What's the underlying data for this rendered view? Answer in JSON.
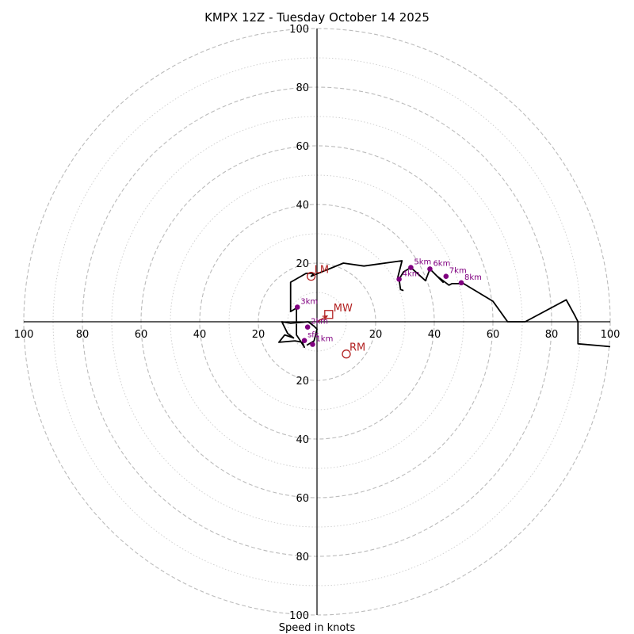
{
  "chart_data": {
    "type": "hodograph",
    "title": "KMPX 12Z - Tuesday October 14 2025",
    "xlabel": "Speed in knots",
    "units": "knots",
    "max_speed": 100,
    "ring_step_major": 20,
    "ring_step_minor": 10,
    "axis_ticks_x": [
      "100",
      "80",
      "60",
      "40",
      "20",
      "20",
      "40",
      "60",
      "80",
      "100"
    ],
    "axis_ticks_x_values": [
      -100,
      -80,
      -60,
      -40,
      -20,
      20,
      40,
      60,
      80,
      100
    ],
    "axis_ticks_y": [
      "100",
      "80",
      "60",
      "40",
      "20",
      "20",
      "40",
      "60",
      "80",
      "100"
    ],
    "axis_ticks_y_values": [
      100,
      80,
      60,
      40,
      20,
      -20,
      -40,
      -60,
      -80,
      -100
    ],
    "colors": {
      "trace": "#000000",
      "height_markers": "#800080",
      "storm_motion": "#b22222",
      "ring_major": "#bbbbbb",
      "ring_minor": "#cccccc"
    },
    "trace": [
      [
        -3.5,
        -8
      ],
      [
        -1,
        -6.5
      ],
      [
        0,
        -2.5
      ],
      [
        -1,
        -1.5
      ],
      [
        -3,
        0
      ],
      [
        -9,
        -0.5
      ],
      [
        -12,
        0
      ],
      [
        -10,
        -4
      ],
      [
        -8,
        -5.5
      ],
      [
        -11,
        -4.5
      ],
      [
        -13,
        -7
      ],
      [
        -7.5,
        -6.5
      ],
      [
        -5,
        -7
      ],
      [
        -4.3,
        -8.7
      ],
      [
        -6,
        -6
      ],
      [
        -7,
        -4.5
      ],
      [
        -7,
        4.7
      ],
      [
        -9,
        3.5
      ],
      [
        -9,
        6
      ],
      [
        -9,
        13.5
      ],
      [
        -3.7,
        16.5
      ],
      [
        -1,
        16.5
      ],
      [
        -2,
        15.5
      ],
      [
        9,
        20
      ],
      [
        16,
        19
      ],
      [
        16,
        19
      ],
      [
        29,
        20.8
      ],
      [
        27.5,
        15
      ],
      [
        28,
        14.5
      ],
      [
        28.5,
        11
      ],
      [
        29.3,
        10.7
      ],
      [
        28.5,
        11
      ],
      [
        28,
        14.5
      ],
      [
        29.5,
        17
      ],
      [
        32,
        18.5
      ],
      [
        37,
        14
      ],
      [
        38.5,
        18
      ],
      [
        43,
        13.5
      ],
      [
        41,
        15.5
      ],
      [
        45,
        12.5
      ],
      [
        46,
        13
      ],
      [
        50,
        13
      ],
      [
        55,
        10
      ],
      [
        60,
        7
      ],
      [
        65,
        0
      ],
      [
        71,
        0
      ],
      [
        85,
        7.5
      ],
      [
        88,
        2
      ],
      [
        89,
        0
      ],
      [
        89,
        -7.5
      ],
      [
        100,
        -8.5
      ]
    ],
    "height_markers": [
      {
        "label": "1km",
        "u": -1.5,
        "v": -7.7
      },
      {
        "label": "2km",
        "u": -3.2,
        "v": -1.8
      },
      {
        "label": "sfc",
        "u": -4.3,
        "v": -6.4
      },
      {
        "label": "3km",
        "u": -6.7,
        "v": 5.0
      },
      {
        "label": "4km",
        "u": 28.0,
        "v": 14.5
      },
      {
        "label": "5km",
        "u": 32.0,
        "v": 18.5
      },
      {
        "label": "6km",
        "u": 38.5,
        "v": 18.0
      },
      {
        "label": "7km",
        "u": 44.0,
        "v": 15.5
      },
      {
        "label": "8km",
        "u": 49.2,
        "v": 13.3
      }
    ],
    "storm_motion": [
      {
        "label": "LM",
        "u": -2,
        "v": 15.5,
        "marker": "circle"
      },
      {
        "label": "RM",
        "u": 10,
        "v": -11,
        "marker": "circle"
      },
      {
        "label": "MW",
        "u": 4,
        "v": 2.5,
        "marker": "square"
      }
    ]
  }
}
